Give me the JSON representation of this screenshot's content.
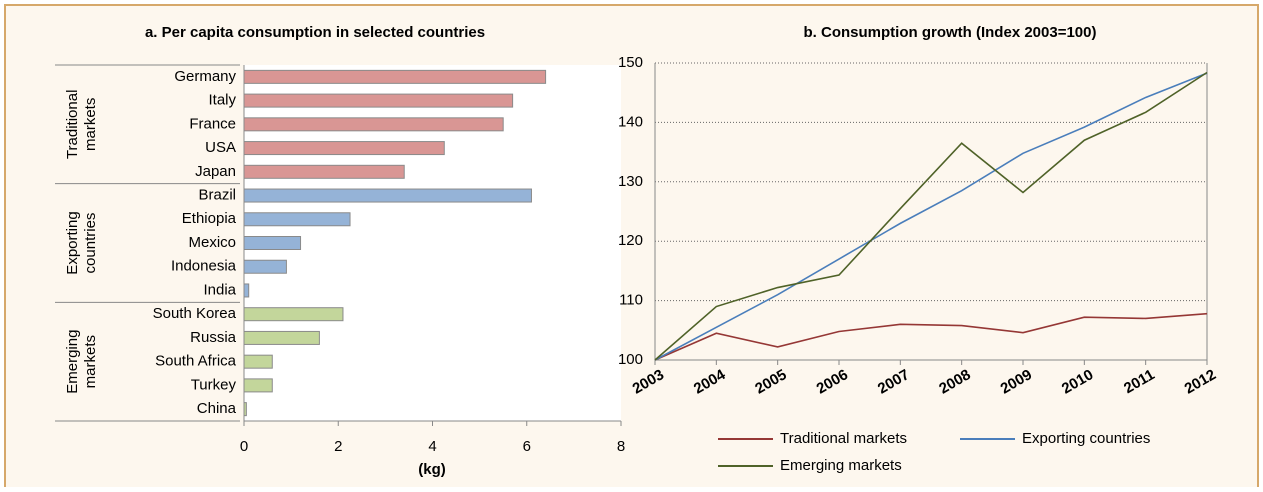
{
  "chart_data": [
    {
      "type": "bar",
      "orientation": "horizontal",
      "title": "a. Per capita consumption  in selected countries",
      "xlabel": "(kg)",
      "xlim": [
        0,
        8
      ],
      "xticks": [
        0,
        2,
        4,
        6,
        8
      ],
      "grid": false,
      "groups": [
        {
          "name": "Traditional markets",
          "color": "#d99694",
          "categories": [
            "Germany",
            "Italy",
            "France",
            "USA",
            "Japan"
          ],
          "values": [
            6.4,
            5.7,
            5.5,
            4.25,
            3.4
          ]
        },
        {
          "name": "Exporting countries",
          "color": "#95b3d7",
          "categories": [
            "Brazil",
            "Ethiopia",
            "Mexico",
            "Indonesia",
            "India"
          ],
          "values": [
            6.1,
            2.25,
            1.2,
            0.9,
            0.1
          ]
        },
        {
          "name": "Emerging markets",
          "color": "#c3d69b",
          "categories": [
            "South Korea",
            "Russia",
            "South Africa",
            "Turkey",
            "China"
          ],
          "values": [
            2.1,
            1.6,
            0.6,
            0.6,
            0.05
          ]
        }
      ]
    },
    {
      "type": "line",
      "title": "b. Consumption  growth (Index 2003=100)",
      "categories": [
        "2003",
        "2004",
        "2005",
        "2006",
        "2007",
        "2008",
        "2009",
        "2010",
        "2011",
        "2012"
      ],
      "ylim": [
        100,
        150
      ],
      "yticks": [
        100,
        110,
        120,
        130,
        140,
        150
      ],
      "grid": true,
      "legend": "bottom",
      "series": [
        {
          "name": "Traditional markets",
          "color": "#953735",
          "values": [
            100,
            104.5,
            102.2,
            104.8,
            106,
            105.8,
            104.6,
            107.2,
            107,
            107.8
          ]
        },
        {
          "name": "Exporting countries",
          "color": "#4a7ebb",
          "values": [
            100,
            105.5,
            111,
            117,
            123,
            128.5,
            134.8,
            139.2,
            144.2,
            148.3
          ]
        },
        {
          "name": "Emerging markets",
          "color": "#4f6228",
          "values": [
            100,
            109,
            112.2,
            114.3,
            125.5,
            136.5,
            128.2,
            137,
            141.7,
            148.4
          ]
        }
      ]
    }
  ]
}
